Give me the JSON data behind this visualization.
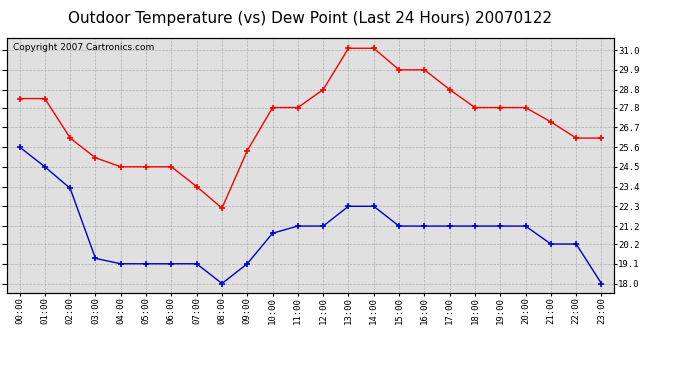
{
  "title": "Outdoor Temperature (vs) Dew Point (Last 24 Hours) 20070122",
  "copyright_text": "Copyright 2007 Cartronics.com",
  "hours": [
    "00:00",
    "01:00",
    "02:00",
    "03:00",
    "04:00",
    "05:00",
    "06:00",
    "07:00",
    "08:00",
    "09:00",
    "10:00",
    "11:00",
    "12:00",
    "13:00",
    "14:00",
    "15:00",
    "16:00",
    "17:00",
    "18:00",
    "19:00",
    "20:00",
    "21:00",
    "22:00",
    "23:00"
  ],
  "temp_red": [
    28.3,
    28.3,
    26.1,
    25.0,
    24.5,
    24.5,
    24.5,
    23.4,
    22.2,
    25.4,
    27.8,
    27.8,
    28.8,
    31.1,
    31.1,
    29.9,
    29.9,
    28.8,
    27.8,
    27.8,
    27.8,
    27.0,
    26.1,
    26.1
  ],
  "dew_blue": [
    25.6,
    24.5,
    23.3,
    19.4,
    19.1,
    19.1,
    19.1,
    19.1,
    18.0,
    19.1,
    20.8,
    21.2,
    21.2,
    22.3,
    22.3,
    21.2,
    21.2,
    21.2,
    21.2,
    21.2,
    21.2,
    20.2,
    20.2,
    18.0
  ],
  "ylim_min": 17.5,
  "ylim_max": 31.7,
  "yticks": [
    18.0,
    19.1,
    20.2,
    21.2,
    22.3,
    23.4,
    24.5,
    25.6,
    26.7,
    27.8,
    28.8,
    29.9,
    31.0
  ],
  "red_color": "#ff0000",
  "blue_color": "#0000cc",
  "bg_color": "#e0e0e0",
  "grid_color": "#aaaaaa",
  "title_fontsize": 11,
  "copyright_fontsize": 6.5
}
